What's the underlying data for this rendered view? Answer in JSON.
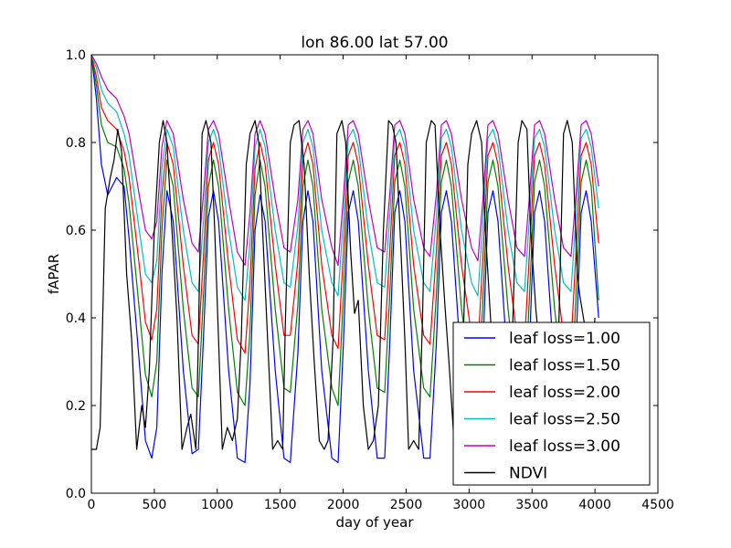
{
  "chart_data": {
    "type": "line",
    "title": "lon 86.00 lat 57.00",
    "xlabel": "day of year",
    "ylabel": "fAPAR",
    "xlim": [
      0,
      4500
    ],
    "ylim": [
      0.0,
      1.0
    ],
    "xticks": [
      "0",
      "500",
      "1000",
      "1500",
      "2000",
      "2500",
      "3000",
      "3500",
      "4000",
      "4500"
    ],
    "yticks": [
      "0.0",
      "0.2",
      "0.4",
      "0.6",
      "0.8",
      "1.0"
    ],
    "grid": false,
    "legend_position": "lower-right",
    "series": [
      {
        "name": "leaf loss=1.00",
        "color": "#0000ff",
        "x": [
          0,
          40,
          80,
          130,
          200,
          260,
          300,
          380,
          430,
          480,
          520,
          560,
          600,
          650,
          730,
          800,
          850,
          890,
          930,
          970,
          1010,
          1090,
          1160,
          1220,
          1260,
          1300,
          1340,
          1380,
          1460,
          1530,
          1580,
          1640,
          1680,
          1720,
          1760,
          1830,
          1910,
          1960,
          2000,
          2040,
          2080,
          2120,
          2200,
          2270,
          2330,
          2370,
          2410,
          2450,
          2490,
          2560,
          2640,
          2690,
          2740,
          2780,
          2820,
          2860,
          2940,
          3020,
          3070,
          3110,
          3150,
          3190,
          3230,
          3310,
          3380,
          3440,
          3480,
          3520,
          3560,
          3600,
          3680,
          3750,
          3810,
          3850,
          3890,
          3930,
          3970,
          4030
        ],
        "y": [
          1.0,
          0.9,
          0.75,
          0.68,
          0.72,
          0.7,
          0.58,
          0.3,
          0.12,
          0.08,
          0.15,
          0.5,
          0.69,
          0.62,
          0.28,
          0.09,
          0.1,
          0.35,
          0.63,
          0.69,
          0.62,
          0.28,
          0.08,
          0.07,
          0.25,
          0.6,
          0.68,
          0.62,
          0.28,
          0.08,
          0.07,
          0.32,
          0.62,
          0.69,
          0.62,
          0.28,
          0.08,
          0.07,
          0.33,
          0.64,
          0.69,
          0.62,
          0.28,
          0.08,
          0.08,
          0.34,
          0.64,
          0.69,
          0.62,
          0.28,
          0.08,
          0.08,
          0.34,
          0.64,
          0.69,
          0.62,
          0.28,
          0.08,
          0.07,
          0.33,
          0.64,
          0.69,
          0.62,
          0.28,
          0.08,
          0.08,
          0.34,
          0.64,
          0.69,
          0.62,
          0.28,
          0.08,
          0.08,
          0.34,
          0.64,
          0.69,
          0.62,
          0.4
        ]
      },
      {
        "name": "leaf loss=1.50",
        "color": "#008000",
        "x": [
          0,
          40,
          80,
          130,
          200,
          260,
          300,
          380,
          430,
          480,
          520,
          560,
          600,
          650,
          730,
          800,
          850,
          890,
          930,
          970,
          1010,
          1090,
          1160,
          1220,
          1260,
          1300,
          1340,
          1380,
          1460,
          1530,
          1580,
          1640,
          1680,
          1720,
          1760,
          1830,
          1910,
          1960,
          2000,
          2040,
          2080,
          2120,
          2200,
          2270,
          2330,
          2370,
          2410,
          2450,
          2490,
          2560,
          2640,
          2690,
          2740,
          2780,
          2820,
          2860,
          2940,
          3020,
          3070,
          3110,
          3150,
          3190,
          3230,
          3310,
          3380,
          3440,
          3480,
          3520,
          3560,
          3600,
          3680,
          3750,
          3810,
          3850,
          3890,
          3930,
          3970,
          4030
        ],
        "y": [
          1.0,
          0.93,
          0.84,
          0.8,
          0.79,
          0.74,
          0.66,
          0.42,
          0.27,
          0.22,
          0.3,
          0.6,
          0.76,
          0.7,
          0.42,
          0.24,
          0.22,
          0.45,
          0.7,
          0.76,
          0.7,
          0.42,
          0.23,
          0.2,
          0.37,
          0.68,
          0.76,
          0.7,
          0.42,
          0.24,
          0.23,
          0.43,
          0.7,
          0.76,
          0.7,
          0.42,
          0.24,
          0.2,
          0.44,
          0.71,
          0.76,
          0.7,
          0.42,
          0.24,
          0.23,
          0.45,
          0.71,
          0.76,
          0.7,
          0.42,
          0.24,
          0.22,
          0.45,
          0.71,
          0.76,
          0.7,
          0.42,
          0.24,
          0.21,
          0.44,
          0.71,
          0.76,
          0.7,
          0.42,
          0.24,
          0.22,
          0.45,
          0.71,
          0.76,
          0.7,
          0.42,
          0.24,
          0.22,
          0.45,
          0.71,
          0.76,
          0.7,
          0.44
        ]
      },
      {
        "name": "leaf loss=2.00",
        "color": "#ff0000",
        "x": [
          0,
          40,
          80,
          130,
          200,
          260,
          300,
          380,
          430,
          480,
          520,
          560,
          600,
          650,
          730,
          800,
          850,
          890,
          930,
          970,
          1010,
          1090,
          1160,
          1220,
          1260,
          1300,
          1340,
          1380,
          1460,
          1530,
          1580,
          1640,
          1680,
          1720,
          1760,
          1830,
          1910,
          1960,
          2000,
          2040,
          2080,
          2120,
          2200,
          2270,
          2330,
          2370,
          2410,
          2450,
          2490,
          2560,
          2640,
          2690,
          2740,
          2780,
          2820,
          2860,
          2940,
          3020,
          3070,
          3110,
          3150,
          3190,
          3230,
          3310,
          3380,
          3440,
          3480,
          3520,
          3560,
          3600,
          3680,
          3750,
          3810,
          3850,
          3890,
          3930,
          3970,
          4030
        ],
        "y": [
          1.0,
          0.95,
          0.88,
          0.85,
          0.83,
          0.78,
          0.72,
          0.52,
          0.39,
          0.35,
          0.42,
          0.68,
          0.8,
          0.75,
          0.52,
          0.36,
          0.34,
          0.54,
          0.76,
          0.8,
          0.75,
          0.52,
          0.35,
          0.32,
          0.48,
          0.74,
          0.8,
          0.75,
          0.52,
          0.36,
          0.36,
          0.53,
          0.76,
          0.8,
          0.75,
          0.52,
          0.36,
          0.33,
          0.54,
          0.77,
          0.8,
          0.75,
          0.52,
          0.36,
          0.35,
          0.55,
          0.77,
          0.8,
          0.75,
          0.52,
          0.36,
          0.34,
          0.55,
          0.77,
          0.8,
          0.75,
          0.52,
          0.36,
          0.33,
          0.54,
          0.77,
          0.8,
          0.75,
          0.52,
          0.36,
          0.34,
          0.55,
          0.77,
          0.8,
          0.75,
          0.52,
          0.36,
          0.34,
          0.55,
          0.77,
          0.8,
          0.75,
          0.57
        ]
      },
      {
        "name": "leaf loss=2.50",
        "color": "#00bfbf",
        "x": [
          0,
          40,
          80,
          130,
          200,
          260,
          300,
          380,
          430,
          480,
          520,
          560,
          600,
          650,
          730,
          800,
          850,
          890,
          930,
          970,
          1010,
          1090,
          1160,
          1220,
          1260,
          1300,
          1340,
          1380,
          1460,
          1530,
          1580,
          1640,
          1680,
          1720,
          1760,
          1830,
          1910,
          1960,
          2000,
          2040,
          2080,
          2120,
          2200,
          2270,
          2330,
          2370,
          2410,
          2450,
          2490,
          2560,
          2640,
          2690,
          2740,
          2780,
          2820,
          2860,
          2940,
          3020,
          3070,
          3110,
          3150,
          3190,
          3230,
          3310,
          3380,
          3440,
          3480,
          3520,
          3560,
          3600,
          3680,
          3750,
          3810,
          3850,
          3890,
          3930,
          3970,
          4030
        ],
        "y": [
          1.0,
          0.97,
          0.92,
          0.89,
          0.87,
          0.82,
          0.77,
          0.6,
          0.5,
          0.48,
          0.53,
          0.74,
          0.83,
          0.79,
          0.6,
          0.48,
          0.46,
          0.62,
          0.8,
          0.83,
          0.79,
          0.6,
          0.47,
          0.44,
          0.57,
          0.79,
          0.83,
          0.79,
          0.6,
          0.48,
          0.47,
          0.61,
          0.8,
          0.83,
          0.79,
          0.6,
          0.48,
          0.45,
          0.62,
          0.81,
          0.83,
          0.79,
          0.6,
          0.48,
          0.47,
          0.63,
          0.81,
          0.83,
          0.79,
          0.6,
          0.48,
          0.46,
          0.63,
          0.81,
          0.83,
          0.79,
          0.6,
          0.48,
          0.45,
          0.62,
          0.81,
          0.83,
          0.79,
          0.6,
          0.48,
          0.46,
          0.63,
          0.81,
          0.83,
          0.79,
          0.6,
          0.48,
          0.46,
          0.63,
          0.81,
          0.83,
          0.79,
          0.65
        ]
      },
      {
        "name": "leaf loss=3.00",
        "color": "#bf00bf",
        "x": [
          0,
          40,
          80,
          130,
          200,
          260,
          300,
          380,
          430,
          480,
          520,
          560,
          600,
          650,
          730,
          800,
          850,
          890,
          930,
          970,
          1010,
          1090,
          1160,
          1220,
          1260,
          1300,
          1340,
          1380,
          1460,
          1530,
          1580,
          1640,
          1680,
          1720,
          1760,
          1830,
          1910,
          1960,
          2000,
          2040,
          2080,
          2120,
          2200,
          2270,
          2330,
          2370,
          2410,
          2450,
          2490,
          2560,
          2640,
          2690,
          2740,
          2780,
          2820,
          2860,
          2940,
          3020,
          3070,
          3110,
          3150,
          3190,
          3230,
          3310,
          3380,
          3440,
          3480,
          3520,
          3560,
          3600,
          3680,
          3750,
          3810,
          3850,
          3890,
          3930,
          3970,
          4030
        ],
        "y": [
          1.0,
          0.98,
          0.95,
          0.92,
          0.9,
          0.86,
          0.82,
          0.68,
          0.6,
          0.58,
          0.62,
          0.79,
          0.85,
          0.82,
          0.67,
          0.57,
          0.55,
          0.68,
          0.83,
          0.85,
          0.82,
          0.67,
          0.55,
          0.52,
          0.64,
          0.82,
          0.85,
          0.82,
          0.67,
          0.56,
          0.55,
          0.67,
          0.83,
          0.85,
          0.82,
          0.67,
          0.56,
          0.52,
          0.67,
          0.84,
          0.85,
          0.82,
          0.67,
          0.56,
          0.55,
          0.68,
          0.84,
          0.85,
          0.82,
          0.67,
          0.56,
          0.54,
          0.68,
          0.84,
          0.85,
          0.82,
          0.67,
          0.56,
          0.53,
          0.67,
          0.84,
          0.85,
          0.82,
          0.67,
          0.56,
          0.54,
          0.68,
          0.84,
          0.85,
          0.82,
          0.67,
          0.56,
          0.54,
          0.68,
          0.84,
          0.85,
          0.82,
          0.7
        ]
      },
      {
        "name": "NDVI",
        "color": "#000000",
        "x": [
          0,
          40,
          70,
          110,
          150,
          180,
          210,
          240,
          280,
          320,
          360,
          400,
          430,
          460,
          500,
          540,
          570,
          600,
          640,
          680,
          720,
          760,
          790,
          830,
          850,
          880,
          910,
          950,
          980,
          1010,
          1040,
          1080,
          1120,
          1160,
          1190,
          1230,
          1260,
          1300,
          1330,
          1360,
          1400,
          1440,
          1480,
          1520,
          1540,
          1580,
          1610,
          1650,
          1690,
          1730,
          1770,
          1810,
          1850,
          1880,
          1920,
          1950,
          1990,
          2020,
          2060,
          2090,
          2120,
          2160,
          2200,
          2240,
          2280,
          2320,
          2360,
          2390,
          2420,
          2460,
          2490,
          2520,
          2560,
          2600,
          2630,
          2660,
          2700,
          2730,
          2770,
          2810,
          2840,
          2880,
          2920,
          2950,
          2990,
          3020,
          3060,
          3100,
          3130,
          3170,
          3210,
          3240,
          3280,
          3320,
          3350,
          3390,
          3420,
          3460,
          3490,
          3530,
          3570,
          3600,
          3640,
          3680,
          3710,
          3750,
          3780,
          3820,
          3860,
          3880,
          3920,
          3960,
          4000
        ],
        "y": [
          0.1,
          0.1,
          0.15,
          0.65,
          0.72,
          0.76,
          0.83,
          0.78,
          0.5,
          0.35,
          0.1,
          0.2,
          0.15,
          0.28,
          0.6,
          0.8,
          0.85,
          0.8,
          0.6,
          0.4,
          0.1,
          0.15,
          0.18,
          0.1,
          0.35,
          0.82,
          0.85,
          0.8,
          0.6,
          0.35,
          0.1,
          0.15,
          0.12,
          0.17,
          0.35,
          0.75,
          0.82,
          0.85,
          0.8,
          0.6,
          0.35,
          0.1,
          0.12,
          0.1,
          0.38,
          0.8,
          0.84,
          0.85,
          0.75,
          0.5,
          0.3,
          0.12,
          0.1,
          0.12,
          0.35,
          0.82,
          0.85,
          0.8,
          0.55,
          0.41,
          0.44,
          0.2,
          0.1,
          0.12,
          0.2,
          0.6,
          0.85,
          0.84,
          0.8,
          0.55,
          0.35,
          0.1,
          0.12,
          0.1,
          0.4,
          0.8,
          0.85,
          0.84,
          0.6,
          0.42,
          0.3,
          0.12,
          0.1,
          0.3,
          0.75,
          0.82,
          0.85,
          0.8,
          0.6,
          0.4,
          0.2,
          0.1,
          0.12,
          0.1,
          0.42,
          0.8,
          0.85,
          0.83,
          0.6,
          0.42,
          0.3,
          0.1,
          0.12,
          0.1,
          0.35,
          0.82,
          0.85,
          0.8,
          0.5,
          0.45,
          0.38,
          0.25,
          0.4
        ]
      }
    ]
  }
}
